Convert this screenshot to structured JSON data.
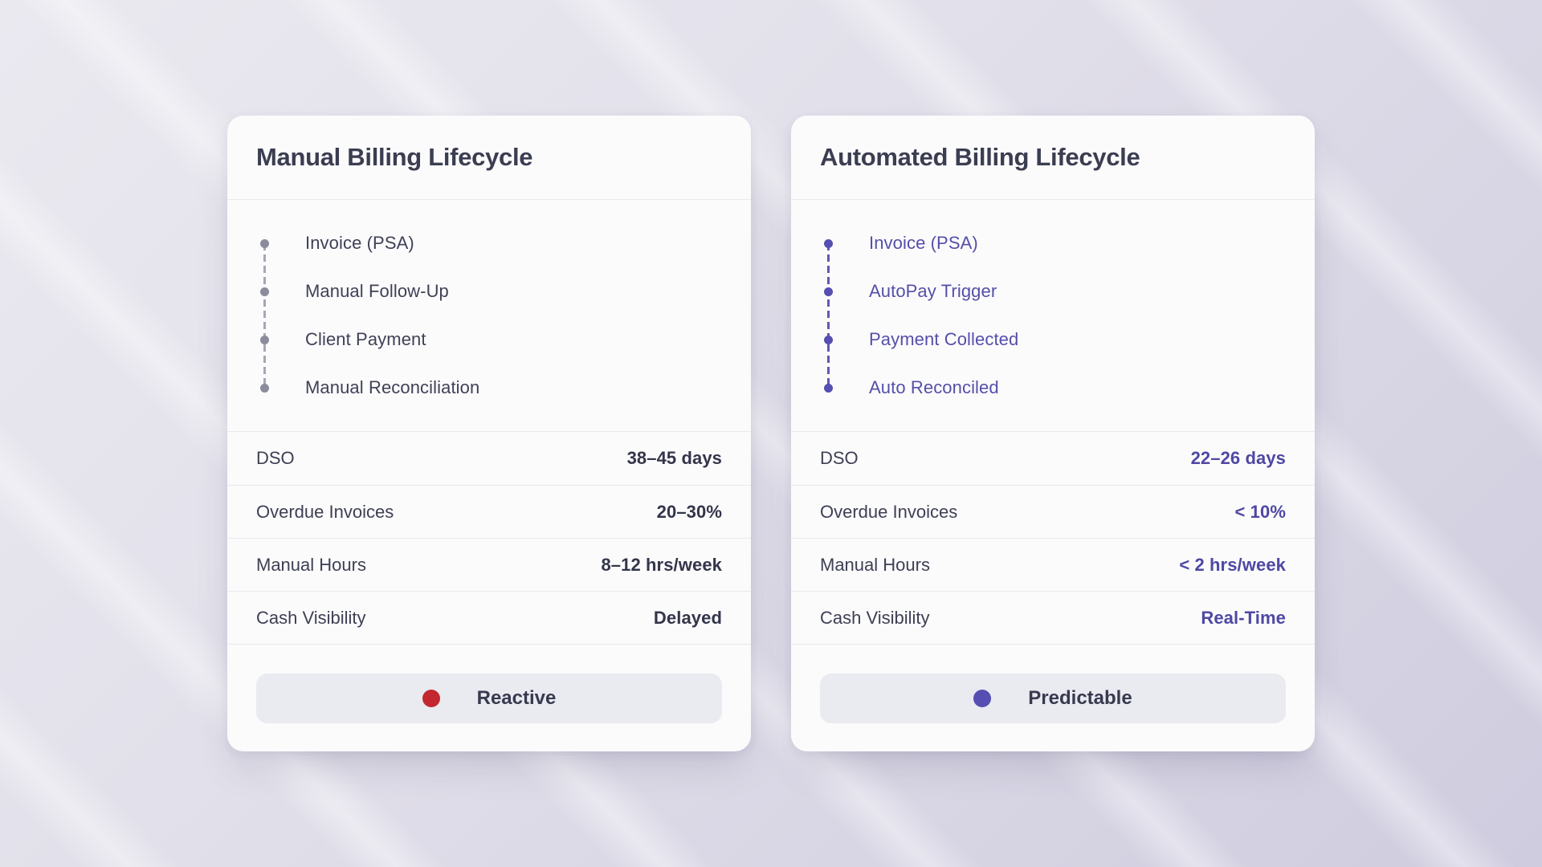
{
  "page": {
    "background": {
      "gradient_top_left": "#eae9f0",
      "gradient_bottom_right": "#cfccdf"
    }
  },
  "cards": [
    {
      "title": "Manual Billing Lifecycle",
      "steps": [
        "Invoice (PSA)",
        "Manual Follow-Up",
        "Client Payment",
        "Manual Reconciliation"
      ],
      "stats": [
        {
          "label": "DSO",
          "value": "38–45 days"
        },
        {
          "label": "Overdue Invoices",
          "value": "20–30%"
        },
        {
          "label": "Manual Hours",
          "value": "8–12 hrs/week"
        },
        {
          "label": "Cash Visibility",
          "value": "Delayed"
        }
      ],
      "badge": {
        "label": "Reactive"
      },
      "colors": {
        "step_text": "#3f4156",
        "dot": "#8b8b9d",
        "dash": "#a6a6b6",
        "value_text": "#33354a",
        "badge_dot": "#c2282d"
      }
    },
    {
      "title": "Automated Billing Lifecycle",
      "steps": [
        "Invoice (PSA)",
        "AutoPay Trigger",
        "Payment Collected",
        "Auto Reconciled"
      ],
      "stats": [
        {
          "label": "DSO",
          "value": "22–26 days"
        },
        {
          "label": "Overdue Invoices",
          "value": "< 10%"
        },
        {
          "label": "Manual Hours",
          "value": "< 2 hrs/week"
        },
        {
          "label": "Cash Visibility",
          "value": "Real-Time"
        }
      ],
      "badge": {
        "label": "Predictable"
      },
      "colors": {
        "step_text": "#554fa8",
        "dot": "#564eb0",
        "dash": "#6059b2",
        "value_text": "#4e48a3",
        "badge_dot": "#564eb3"
      }
    }
  ]
}
